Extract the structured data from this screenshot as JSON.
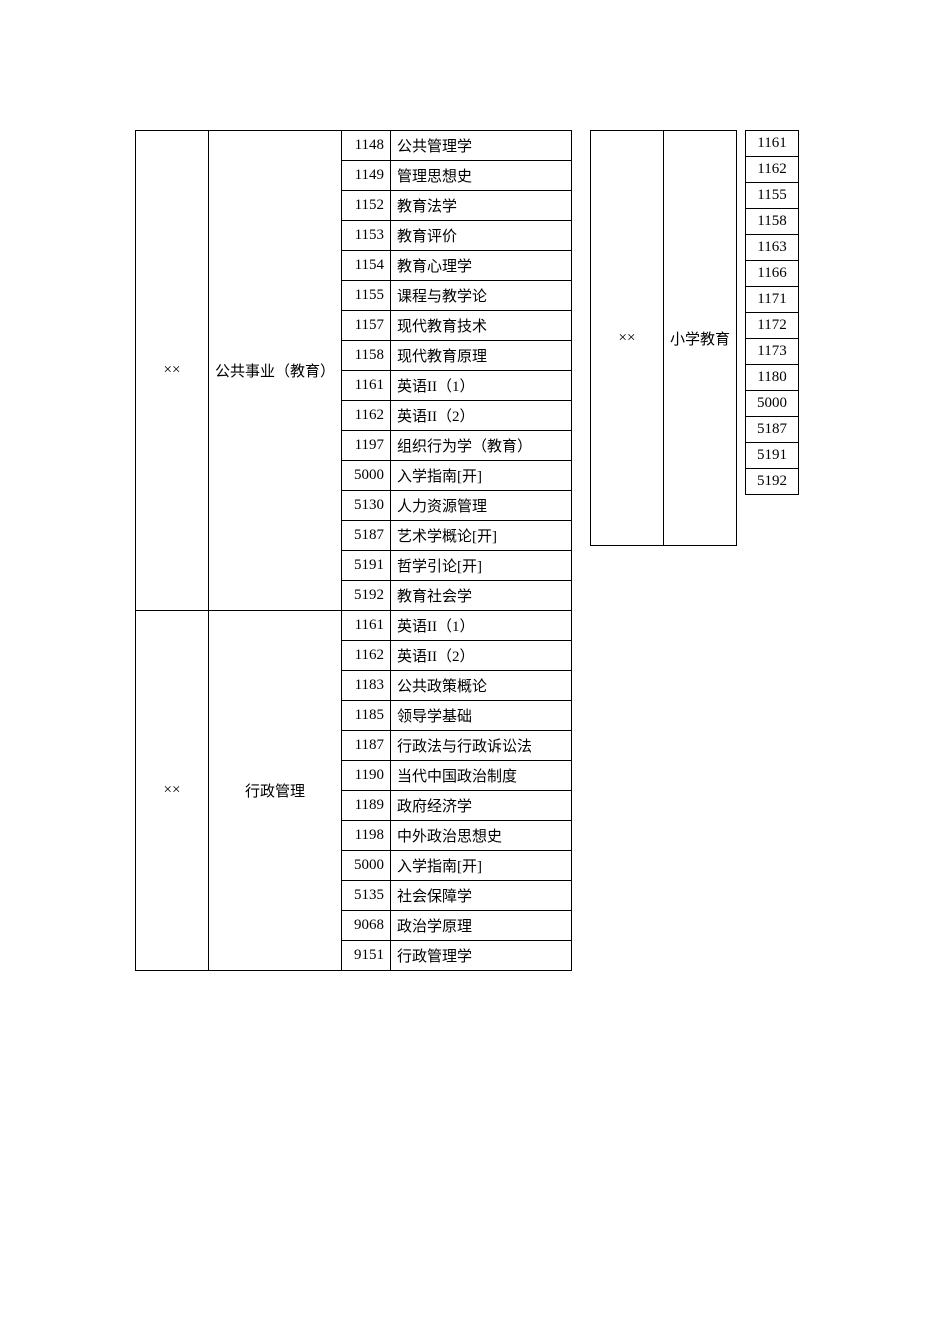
{
  "left": {
    "groups": [
      {
        "cat": "××",
        "major": "公共事业（教育）",
        "rows": [
          {
            "code": "1148",
            "name": "公共管理学"
          },
          {
            "code": "1149",
            "name": "管理思想史"
          },
          {
            "code": "1152",
            "name": "教育法学"
          },
          {
            "code": "1153",
            "name": "教育评价"
          },
          {
            "code": "1154",
            "name": "教育心理学"
          },
          {
            "code": "1155",
            "name": "课程与教学论"
          },
          {
            "code": "1157",
            "name": "现代教育技术"
          },
          {
            "code": "1158",
            "name": "现代教育原理"
          },
          {
            "code": "1161",
            "name": "英语II（1）"
          },
          {
            "code": "1162",
            "name": "英语II（2）"
          },
          {
            "code": "1197",
            "name": "组织行为学（教育）"
          },
          {
            "code": "5000",
            "name": "入学指南[开]"
          },
          {
            "code": "5130",
            "name": "人力资源管理"
          },
          {
            "code": "5187",
            "name": "艺术学概论[开]"
          },
          {
            "code": "5191",
            "name": "哲学引论[开]"
          },
          {
            "code": "5192",
            "name": "教育社会学"
          }
        ]
      },
      {
        "cat": "××",
        "major": "行政管理",
        "rows": [
          {
            "code": "1161",
            "name": "英语II（1）"
          },
          {
            "code": "1162",
            "name": "英语II（2）"
          },
          {
            "code": "1183",
            "name": "公共政策概论"
          },
          {
            "code": "1185",
            "name": "领导学基础"
          },
          {
            "code": "1187",
            "name": "行政法与行政诉讼法"
          },
          {
            "code": "1190",
            "name": "当代中国政治制度"
          },
          {
            "code": "1189",
            "name": "政府经济学"
          },
          {
            "code": "1198",
            "name": "中外政治思想史"
          },
          {
            "code": "5000",
            "name": "入学指南[开]"
          },
          {
            "code": "5135",
            "name": "社会保障学"
          },
          {
            "code": "9068",
            "name": "政治学原理"
          },
          {
            "code": "9151",
            "name": "行政管理学"
          }
        ]
      }
    ]
  },
  "right": {
    "cat": "××",
    "major": "小学教育",
    "codes": [
      "1161",
      "1162",
      "1155",
      "1158",
      "1163",
      "1166",
      "1171",
      "1172",
      "1173",
      "1180",
      "5000",
      "5187",
      "5191",
      "5192"
    ]
  }
}
